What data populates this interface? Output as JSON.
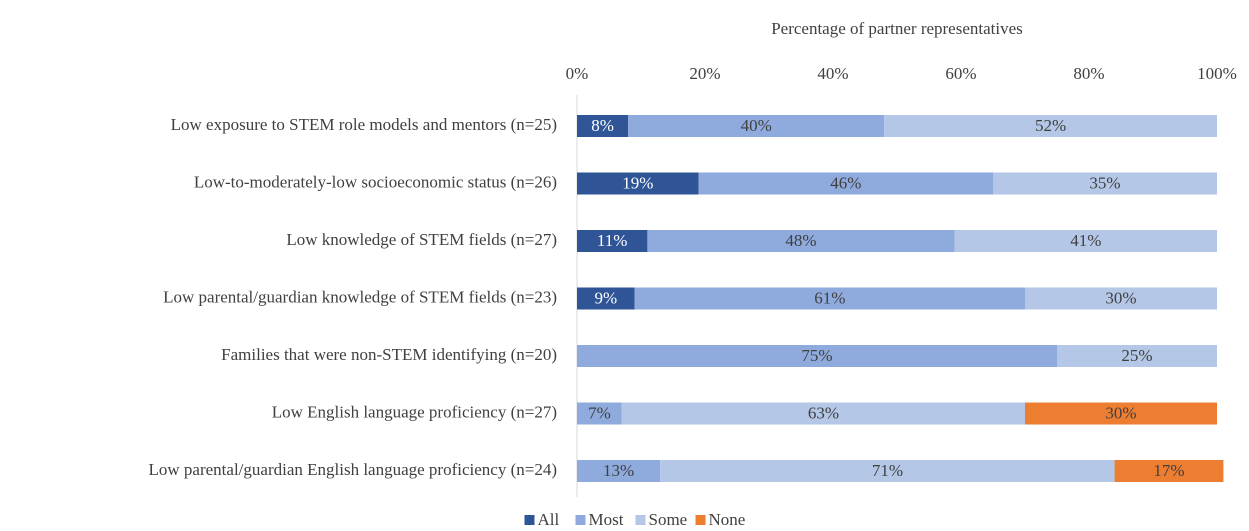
{
  "chart_data": {
    "type": "stacked_bar_horizontal",
    "x_label": "Percentage of partner representatives",
    "categories": [
      "Low exposure to STEM role models and mentors (n=25)",
      "Low-to-moderately-low socioeconomic status (n=26)",
      "Low knowledge of STEM fields (n=27)",
      "Low parental/guardian knowledge of STEM fields (n=23)",
      "Families that were non-STEM identifying (n=20)",
      "Low English language proficiency (n=27)",
      "Low parental/guardian English language proficiency (n=24)"
    ],
    "series": [
      {
        "name": "All",
        "color": "#2f5597",
        "values": [
          8,
          19,
          11,
          9,
          null,
          null,
          null
        ],
        "value_labels": [
          "8%",
          "19%",
          "11%",
          "9%",
          null,
          null,
          null
        ]
      },
      {
        "name": "Most",
        "color": "#8faadc",
        "values": [
          40,
          46,
          48,
          61,
          75,
          7,
          13
        ],
        "value_labels": [
          "40%",
          "46%",
          "48%",
          "61%",
          "75%",
          "7%",
          "13%"
        ]
      },
      {
        "name": "Some",
        "color": "#b4c7e7",
        "values": [
          52,
          35,
          41,
          30,
          25,
          63,
          71
        ],
        "value_labels": [
          "52%",
          "35%",
          "41%",
          "30%",
          "25%",
          "63%",
          "71%"
        ]
      },
      {
        "name": "None",
        "color": "#ed7d31",
        "values": [
          null,
          null,
          null,
          null,
          null,
          30,
          17
        ],
        "value_labels": [
          null,
          null,
          null,
          null,
          null,
          "30%",
          "17%"
        ]
      }
    ],
    "xlim": [
      0,
      100
    ],
    "xticks": [
      {
        "value": 0,
        "label": "0%"
      },
      {
        "value": 20,
        "label": "20%"
      },
      {
        "value": 40,
        "label": "40%"
      },
      {
        "value": 60,
        "label": "60%"
      },
      {
        "value": 80,
        "label": "80%"
      },
      {
        "value": 100,
        "label": "100%"
      }
    ],
    "legend": "bottom"
  }
}
